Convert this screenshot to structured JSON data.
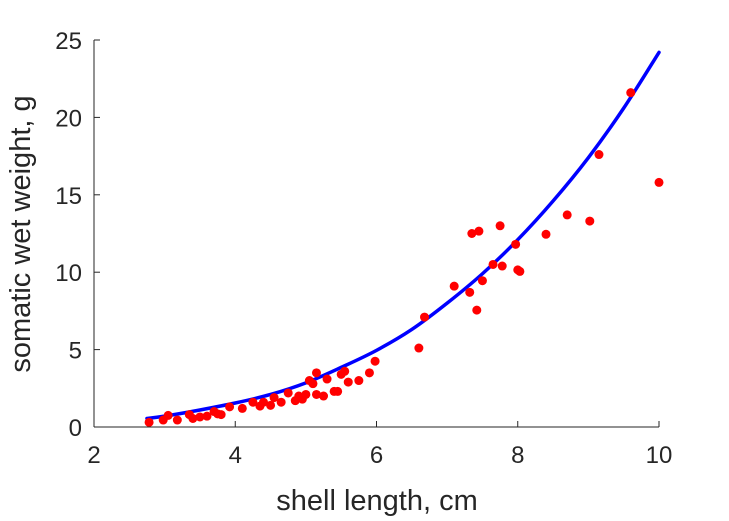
{
  "chart_data": {
    "type": "scatter",
    "title": "",
    "xlabel": "shell length, cm",
    "ylabel": "somatic wet weight, g",
    "xlim": [
      2,
      10
    ],
    "ylim": [
      0,
      25
    ],
    "xticks": [
      2,
      4,
      6,
      8,
      10
    ],
    "yticks": [
      0,
      5,
      10,
      15,
      20,
      25
    ],
    "grid": false,
    "legend": "none",
    "series": [
      {
        "kind": "points",
        "color": "#ff0000",
        "points": [
          [
            2.78,
            0.3
          ],
          [
            2.98,
            0.45
          ],
          [
            3.05,
            0.75
          ],
          [
            3.18,
            0.45
          ],
          [
            3.35,
            0.8
          ],
          [
            3.4,
            0.55
          ],
          [
            3.5,
            0.65
          ],
          [
            3.6,
            0.7
          ],
          [
            3.7,
            1.0
          ],
          [
            3.75,
            0.85
          ],
          [
            3.8,
            0.8
          ],
          [
            3.92,
            1.3
          ],
          [
            4.1,
            1.2
          ],
          [
            4.25,
            1.6
          ],
          [
            4.35,
            1.35
          ],
          [
            4.4,
            1.6
          ],
          [
            4.5,
            1.4
          ],
          [
            4.55,
            1.9
          ],
          [
            4.65,
            1.6
          ],
          [
            4.75,
            2.2
          ],
          [
            4.85,
            1.7
          ],
          [
            4.9,
            2.0
          ],
          [
            4.95,
            1.8
          ],
          [
            5.0,
            2.1
          ],
          [
            5.05,
            3.0
          ],
          [
            5.1,
            2.8
          ],
          [
            5.15,
            2.1
          ],
          [
            5.15,
            3.5
          ],
          [
            5.25,
            2.0
          ],
          [
            5.3,
            3.1
          ],
          [
            5.4,
            2.3
          ],
          [
            5.45,
            2.3
          ],
          [
            5.5,
            3.4
          ],
          [
            5.55,
            3.6
          ],
          [
            5.6,
            2.9
          ],
          [
            5.75,
            3.0
          ],
          [
            5.9,
            3.5
          ],
          [
            5.98,
            4.25
          ],
          [
            6.6,
            5.1
          ],
          [
            6.68,
            7.1
          ],
          [
            7.1,
            9.1
          ],
          [
            7.32,
            8.7
          ],
          [
            7.35,
            12.5
          ],
          [
            7.42,
            7.55
          ],
          [
            7.45,
            12.65
          ],
          [
            7.5,
            9.45
          ],
          [
            7.65,
            10.5
          ],
          [
            7.75,
            13.0
          ],
          [
            7.78,
            10.4
          ],
          [
            7.97,
            11.8
          ],
          [
            8.0,
            10.15
          ],
          [
            8.03,
            10.05
          ],
          [
            8.4,
            12.45
          ],
          [
            8.7,
            13.7
          ],
          [
            9.02,
            13.3
          ],
          [
            9.15,
            17.6
          ],
          [
            9.6,
            21.6
          ],
          [
            10.0,
            15.8
          ]
        ]
      },
      {
        "kind": "fitted-curve",
        "color": "#0000ff",
        "x": [
          2.75,
          3,
          3.5,
          4,
          4.5,
          5,
          5.5,
          6,
          6.5,
          7,
          7.5,
          8,
          8.5,
          9,
          9.5,
          10
        ],
        "y": [
          0.55,
          0.7,
          1.1,
          1.55,
          2.1,
          2.85,
          3.85,
          4.95,
          6.3,
          8.0,
          9.9,
          12.1,
          14.6,
          17.4,
          20.6,
          24.2
        ]
      }
    ]
  }
}
